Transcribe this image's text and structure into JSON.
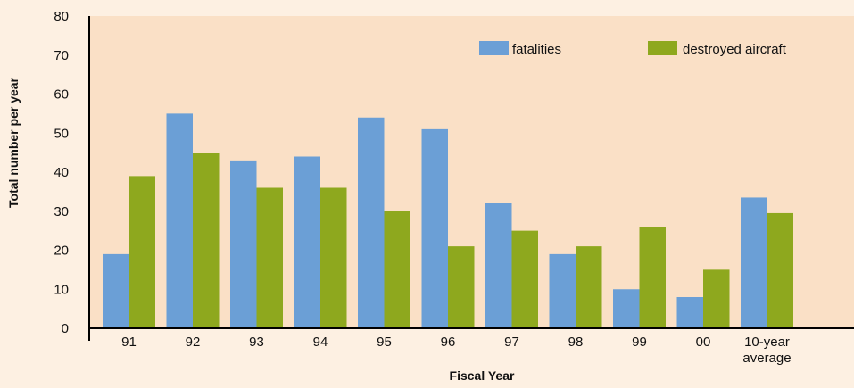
{
  "chart_data": {
    "type": "bar",
    "title": "",
    "xlabel": "Fiscal Year",
    "ylabel": "Total number per year",
    "categories": [
      "91",
      "92",
      "93",
      "94",
      "95",
      "96",
      "97",
      "98",
      "99",
      "00",
      "10-year average"
    ],
    "category_lines": [
      [
        "91"
      ],
      [
        "92"
      ],
      [
        "93"
      ],
      [
        "94"
      ],
      [
        "95"
      ],
      [
        "96"
      ],
      [
        "97"
      ],
      [
        "98"
      ],
      [
        "99"
      ],
      [
        "00"
      ],
      [
        "10-year",
        "average"
      ]
    ],
    "series": [
      {
        "name": "fatalities",
        "color": "#6b9fd6",
        "values": [
          19,
          55,
          43,
          44,
          54,
          51,
          32,
          19,
          10,
          8,
          33.5
        ]
      },
      {
        "name": "destroyed aircraft",
        "color": "#8ea81e",
        "values": [
          39,
          45,
          36,
          36,
          30,
          21,
          25,
          21,
          26,
          15,
          29.5
        ]
      }
    ],
    "ylim": [
      0,
      80
    ],
    "yticks": [
      "0",
      "10",
      "20",
      "30",
      "40",
      "50",
      "60",
      "70",
      "80"
    ],
    "legend_position": "top-right",
    "grid": false
  },
  "colors": {
    "page_background": "#fdf0e2",
    "plot_background": "#fae0c6",
    "axis": "#000000"
  }
}
